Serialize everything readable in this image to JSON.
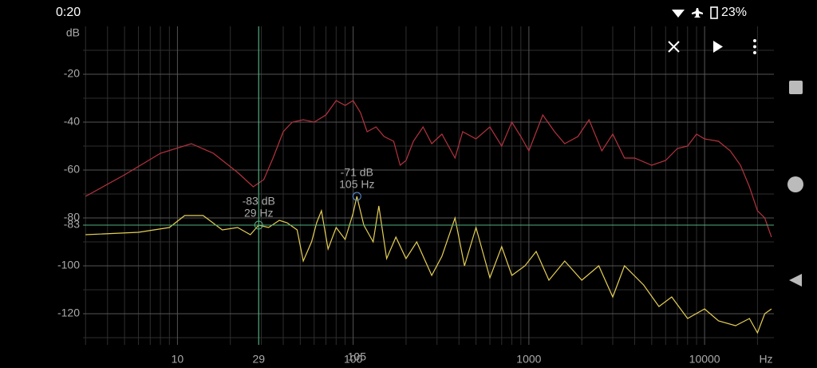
{
  "status_bar": {
    "time": "0:20",
    "battery": "23%"
  },
  "chart_data": {
    "type": "line",
    "x_label": "Hz",
    "y_label": "dB",
    "xscale": "log",
    "grid": true,
    "xlim": [
      2.9,
      24800
    ],
    "ylim": [
      -133,
      0
    ],
    "xticks": [
      10,
      100,
      1000,
      10000
    ],
    "xminorticks": [
      3,
      4,
      5,
      6,
      7,
      8,
      9,
      20,
      30,
      40,
      50,
      60,
      70,
      80,
      90,
      200,
      300,
      400,
      500,
      600,
      700,
      800,
      900,
      2000,
      3000,
      4000,
      5000,
      6000,
      7000,
      8000,
      9000,
      20000
    ],
    "yticks": [
      -20,
      -40,
      -60,
      -80,
      -100,
      -120
    ],
    "yminorticks": [
      -10,
      -30,
      -50,
      -70,
      -90,
      -110,
      -130
    ],
    "series": [
      {
        "color": "#b5333f",
        "x": [
          3,
          5,
          8,
          12,
          16,
          22,
          27,
          31,
          35,
          40,
          45,
          52,
          60,
          70,
          80,
          90,
          100,
          110,
          120,
          135,
          150,
          170,
          185,
          200,
          220,
          250,
          280,
          320,
          380,
          420,
          500,
          600,
          700,
          800,
          900,
          1000,
          1200,
          1400,
          1600,
          1900,
          2200,
          2600,
          3000,
          3500,
          4000,
          5000,
          6000,
          7000,
          8000,
          9000,
          10000,
          12000,
          14000,
          16000,
          18000,
          20000,
          22000,
          24000
        ],
        "values": [
          -71,
          -62,
          -53,
          -49,
          -53,
          -61,
          -67,
          -64,
          -55,
          -44,
          -40,
          -39,
          -40,
          -37,
          -31,
          -33,
          -31,
          -36,
          -44,
          -42,
          -46,
          -48,
          -58,
          -56,
          -48,
          -42,
          -49,
          -45,
          -55,
          -44,
          -47,
          -42,
          -50,
          -40,
          -46,
          -52,
          -37,
          -44,
          -49,
          -46,
          -39,
          -52,
          -45,
          -55,
          -55,
          -58,
          -56,
          -51,
          -50,
          -45,
          -47,
          -48,
          -52,
          -58,
          -67,
          -77,
          -80,
          -88
        ]
      },
      {
        "color": "#e6cf55",
        "x": [
          3,
          6,
          9,
          11,
          14,
          18,
          22,
          26,
          29,
          33,
          38,
          42,
          48,
          52,
          58,
          62,
          66,
          72,
          80,
          90,
          100,
          105,
          115,
          130,
          140,
          155,
          175,
          200,
          230,
          280,
          320,
          380,
          430,
          500,
          600,
          700,
          800,
          950,
          1100,
          1300,
          1600,
          2000,
          2500,
          3000,
          3500,
          4500,
          5500,
          6500,
          8000,
          10000,
          12000,
          15000,
          18000,
          20000,
          22000,
          24000
        ],
        "values": [
          -87,
          -86,
          -84,
          -79,
          -79,
          -85,
          -84,
          -87,
          -83,
          -84,
          -81,
          -82,
          -85,
          -98,
          -90,
          -82,
          -77,
          -93,
          -84,
          -89,
          -78,
          -71,
          -83,
          -90,
          -75,
          -97,
          -88,
          -97,
          -90,
          -104,
          -96,
          -80,
          -100,
          -84,
          -105,
          -92,
          -104,
          -100,
          -94,
          -106,
          -98,
          -106,
          -100,
          -113,
          -100,
          -108,
          -117,
          -113,
          -122,
          -118,
          -123,
          -125,
          -122,
          -128,
          -120,
          -118
        ]
      }
    ],
    "cursors": [
      {
        "color": "#4fae7c",
        "x": 29,
        "y": -83,
        "value_labels": [
          "-83 dB",
          "29 Hz"
        ]
      },
      {
        "color": "#5b8fd6",
        "x": 105,
        "y": -71,
        "value_labels": [
          "-71 dB",
          "105 Hz"
        ]
      }
    ]
  }
}
